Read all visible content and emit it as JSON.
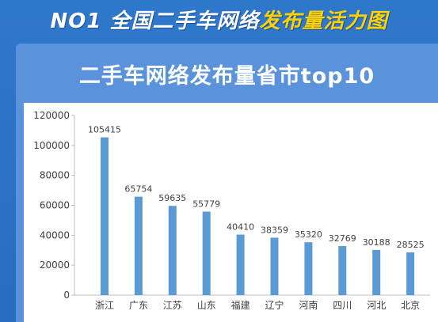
{
  "header": {
    "title_part1": "NO1 全国二手车网络",
    "title_part2": "发布量活力图"
  },
  "panel": {
    "title": "二手车网络发布量省市top10"
  },
  "colors": {
    "bar": "#5b9bd5",
    "title_accent": "#ffd200",
    "background": "#2a6fc4"
  },
  "chart_data": {
    "type": "bar",
    "title": "二手车网络发布量省市top10",
    "categories": [
      "浙江",
      "广东",
      "江苏",
      "山东",
      "福建",
      "辽宁",
      "河南",
      "四川",
      "河北",
      "北京"
    ],
    "values": [
      105415,
      65754,
      59635,
      55779,
      40410,
      38359,
      35320,
      32769,
      30188,
      28525
    ],
    "ylim": [
      0,
      120000
    ],
    "yticks": [
      0,
      20000,
      40000,
      60000,
      80000,
      100000,
      120000
    ],
    "grid": false,
    "legend": "none",
    "data_labels": true
  }
}
